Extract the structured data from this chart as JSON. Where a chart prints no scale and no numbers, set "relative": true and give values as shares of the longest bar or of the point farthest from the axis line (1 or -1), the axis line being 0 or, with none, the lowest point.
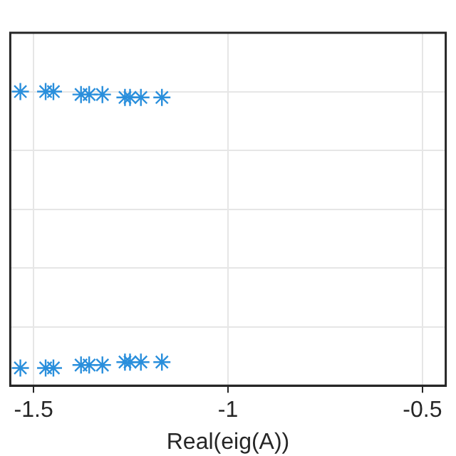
{
  "chart_data": {
    "type": "scatter",
    "xlabel": "Real(eig(A))",
    "relative": true,
    "marker": "cross",
    "grid": true,
    "xlim": [
      -1.56,
      -0.44
    ],
    "xticks": [
      -1.5,
      -1,
      -0.5
    ],
    "series": [
      {
        "color": "#2a8fdc",
        "x": [
          -1.534,
          -1.469,
          -1.449,
          -1.378,
          -1.357,
          -1.323,
          -1.265,
          -1.252,
          -1.224,
          -1.17,
          -1.534,
          -1.469,
          -1.449,
          -1.378,
          -1.357,
          -1.323,
          -1.265,
          -1.252,
          -1.224,
          -1.17
        ],
        "values": [
          1,
          1,
          1,
          0.99,
          0.99,
          0.99,
          0.98,
          0.98,
          0.98,
          0.98,
          0.06,
          0.06,
          0.06,
          0.07,
          0.07,
          0.07,
          0.08,
          0.08,
          0.08,
          0.08
        ]
      }
    ]
  }
}
